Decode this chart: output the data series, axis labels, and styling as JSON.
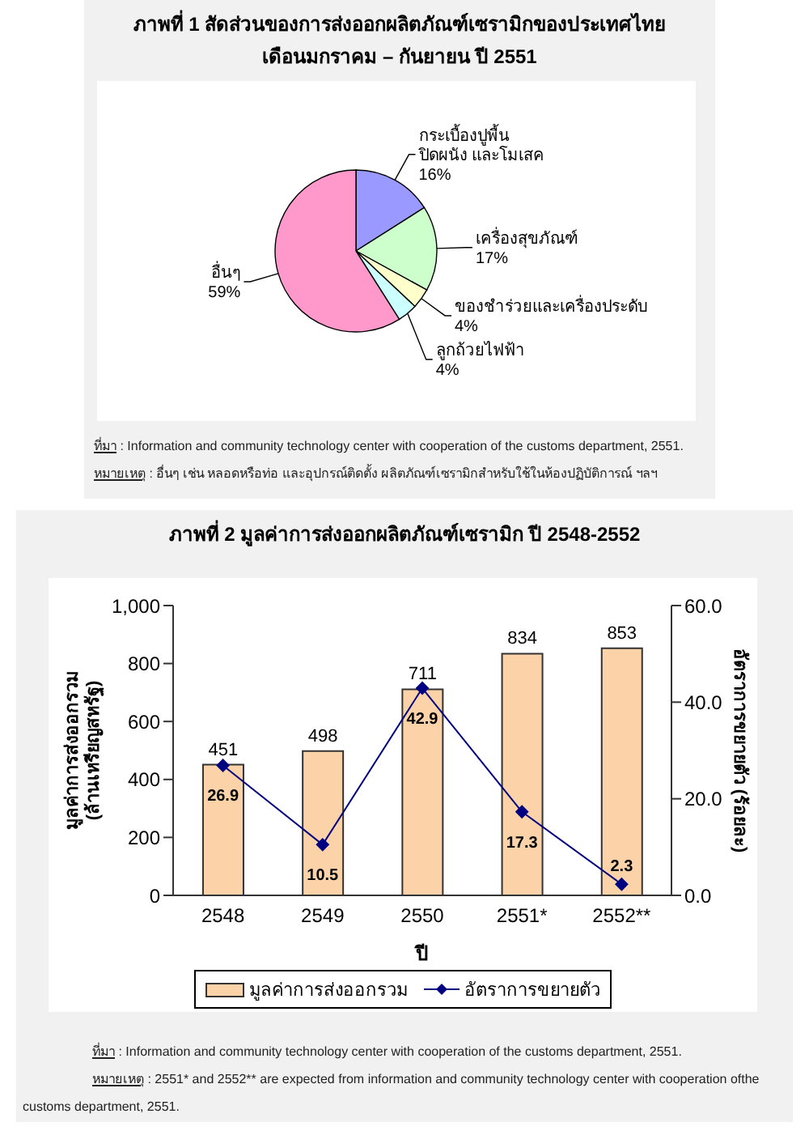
{
  "chart_data": [
    {
      "type": "pie",
      "title": "ภาพที่ 1 สัดส่วนของการส่งออกผลิตภัณฑ์เซรามิกของประเทศไทย",
      "subtitle": "เดือนมกราคม – กันยายน ปี 2551",
      "categories": [
        "กระเบื้องปูพื้น ปิดผนัง และโมเสค",
        "เครื่องสุขภัณฑ์",
        "ของชำร่วยและเครื่องประดับ",
        "ลูกถ้วยไฟฟ้า",
        "อื่นๆ"
      ],
      "values": [
        16,
        17,
        4,
        4,
        59
      ],
      "colors": [
        "#9999ff",
        "#ccffcc",
        "#ffffcc",
        "#ccffff",
        "#ff99cc"
      ],
      "value_labels": [
        "16%",
        "17%",
        "4%",
        "4%",
        "59%"
      ],
      "annotations": [
        "ที่มา : Information and community technology center with cooperation of the customs department, 2551.",
        "หมายเหตุ : อื่นๆ เช่น หลอดหรือท่อ และอุปกรณ์ติดตั้ง ผลิตภัณฑ์เซรามิกสำหรับใช้ในห้องปฏิบัติการณ์ ฯลฯ"
      ]
    },
    {
      "type": "bar",
      "title": "ภาพที่ 2 มูลค่าการส่งออกผลิตภัณฑ์เซรามิก ปี 2548-2552",
      "xlabel": "ปี",
      "ylabel": "มูลค่าการส่งออกรวม (ล้านเหรียญสหรัฐ)",
      "y2label": "อัตราการขยายตัว (ร้อยละ)",
      "categories": [
        "2548",
        "2549",
        "2550",
        "2551*",
        "2552**"
      ],
      "series": [
        {
          "name": "มูลค่าการส่งออกรวม",
          "color": "#fcd3a8",
          "values": [
            451,
            498,
            711,
            834,
            853
          ]
        },
        {
          "name": "อัตราการขยายตัว",
          "type": "line",
          "axis": "y2",
          "color": "#000080",
          "marker": "diamond",
          "values": [
            26.9,
            10.5,
            42.9,
            17.3,
            2.3
          ]
        }
      ],
      "ylim": [
        0,
        1000
      ],
      "yticks": [
        0,
        200,
        400,
        600,
        800,
        {
          "value": 1000,
          "label": "1,000"
        }
      ],
      "y2lim": [
        0,
        60
      ],
      "y2ticks": [
        {
          "value": 0,
          "label": "0.0"
        },
        {
          "value": 20,
          "label": "20.0"
        },
        {
          "value": 40,
          "label": "40.0"
        },
        {
          "value": 60,
          "label": "60.0"
        }
      ],
      "data_labels": true,
      "legend": "bottom",
      "annotations": [
        "ที่มา : Information and community technology center with cooperation of the customs department, 2551.",
        "หมายเหตุ : 2551* and 2552** are expected from information and community technology center with cooperation ofthe customs department, 2551."
      ]
    }
  ]
}
